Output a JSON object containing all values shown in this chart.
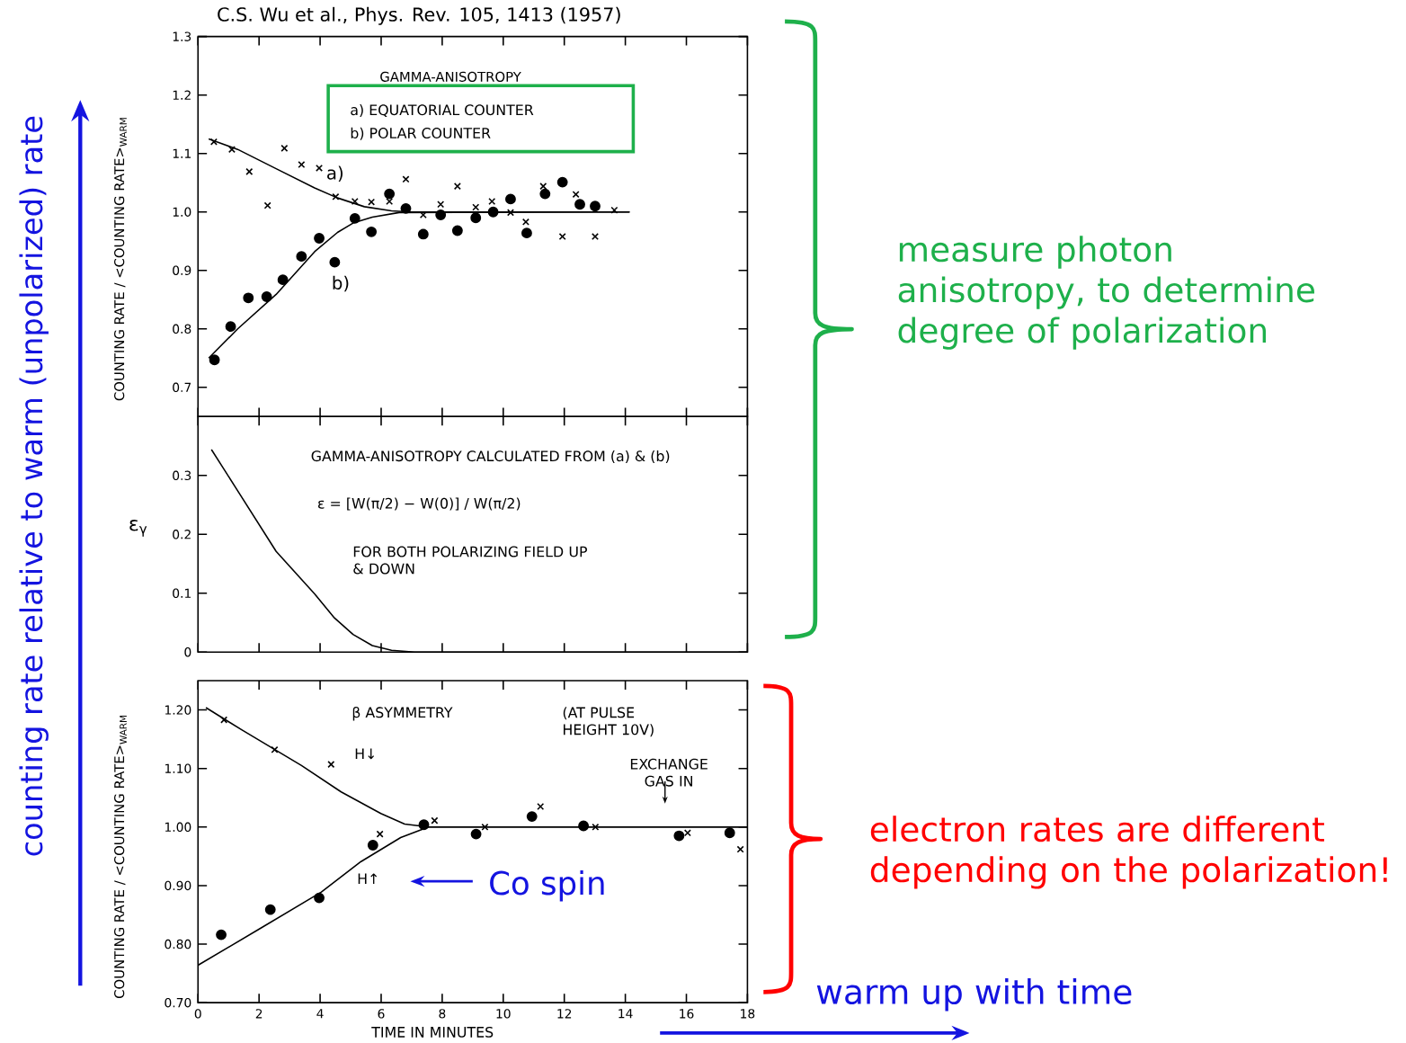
{
  "chart_data": [
    {
      "type": "scatter",
      "title": "C.S. Wu et al., Phys. Rev. 105, 1413 (1957)",
      "ylabel": "COUNTING RATE / <COUNTING RATE>$_{WARM}$",
      "xlim": [
        0,
        18
      ],
      "ylim": [
        0.65,
        1.3
      ],
      "xticks": [
        0,
        2,
        4,
        6,
        8,
        10,
        12,
        14,
        16,
        18
      ],
      "yticks": [
        0.7,
        0.8,
        0.9,
        {
          "value": 1.0,
          "label": "1.0"
        },
        1.1,
        1.2,
        1.3
      ],
      "tick_labels": "y",
      "annotations": [
        "GAMMA-ANISOTROPY",
        "a) EQUATORIAL COUNTER",
        "b) POLAR COUNTER",
        "measure photon anisotropy, to determine degree of polarization",
        "counting rate relative to warm (unpolarized) rate"
      ],
      "series": [
        {
          "marker": "cross",
          "color": "#000000",
          "x": [
            0.52,
            1.11,
            1.68,
            2.28,
            2.83,
            3.39,
            3.97,
            4.51,
            5.14,
            5.68,
            6.27,
            6.81,
            7.38,
            7.95,
            8.5,
            9.1,
            9.63,
            10.24,
            10.74,
            11.31,
            11.94,
            12.38,
            13.01,
            13.64
          ],
          "values": [
            1.12,
            1.107,
            1.069,
            1.011,
            1.109,
            1.081,
            1.075,
            1.026,
            1.018,
            1.017,
            1.018,
            1.056,
            0.995,
            1.013,
            1.044,
            1.008,
            1.018,
            0.999,
            0.983,
            1.044,
            0.958,
            1.03,
            0.958,
            1.003
          ]
        },
        {
          "marker": "circle",
          "color": "#000000",
          "x": [
            0.54,
            1.07,
            1.65,
            2.25,
            2.78,
            3.39,
            3.97,
            4.48,
            5.14,
            5.68,
            6.27,
            6.81,
            7.38,
            7.95,
            8.5,
            9.1,
            9.67,
            10.24,
            10.77,
            11.37,
            11.94,
            12.51,
            13.01
          ],
          "values": [
            0.747,
            0.804,
            0.853,
            0.855,
            0.884,
            0.924,
            0.955,
            0.914,
            0.989,
            0.966,
            1.031,
            1.006,
            0.962,
            0.995,
            0.968,
            0.99,
            1.0,
            1.022,
            0.964,
            1.031,
            1.051,
            1.013,
            1.01
          ]
        },
        {
          "type": "line",
          "name": "a)",
          "color": "#000000",
          "x": [
            0.35,
            1.3,
            2.56,
            3.82,
            4.57,
            5.45,
            6.34,
            6.96,
            14.14
          ],
          "values": [
            1.125,
            1.107,
            1.074,
            1.041,
            1.024,
            1.009,
            1.002,
            1.0,
            1.0
          ]
        },
        {
          "type": "line",
          "name": "b)",
          "color": "#000000",
          "x": [
            0.35,
            1.3,
            2.56,
            3.82,
            4.57,
            5.08,
            5.71,
            6.59,
            14.14
          ],
          "values": [
            0.75,
            0.8,
            0.859,
            0.932,
            0.965,
            0.981,
            0.991,
            0.999,
            1.0
          ]
        }
      ]
    },
    {
      "type": "line",
      "ylabel": "ε$_{γ}$",
      "xlim": [
        0,
        18
      ],
      "ylim": [
        0,
        0.4
      ],
      "xticks": [
        0,
        2,
        4,
        6,
        8,
        10,
        12,
        14,
        16,
        18
      ],
      "yticks": [
        0,
        0.1,
        0.2,
        0.3
      ],
      "tick_labels": "y",
      "annotations": [
        "GAMMA-ANISOTROPY CALCULATED FROM (a) & (b)",
        "ε = [W(π/2) − W(0)] / W(π/2)",
        "FOR BOTH POLARIZING FIELD UP & DOWN"
      ],
      "series": [
        {
          "color": "#000000",
          "x": [
            0.44,
            1.3,
            2.56,
            3.82,
            4.45,
            5.08,
            5.71,
            6.34,
            7.09,
            18
          ],
          "values": [
            0.344,
            0.274,
            0.171,
            0.099,
            0.059,
            0.03,
            0.011,
            0.003,
            0,
            0
          ]
        }
      ]
    },
    {
      "type": "scatter",
      "ylabel": "COUNTING RATE / <COUNTING RATE>$_{WARM}$",
      "xlabel": "TIME IN MINUTES",
      "xlim": [
        0,
        18
      ],
      "ylim": [
        0.7,
        1.25
      ],
      "xticks": [
        0,
        2,
        4,
        6,
        8,
        10,
        12,
        14,
        16,
        18
      ],
      "yticks": [
        {
          "value": 0.7,
          "label": "0.70"
        },
        {
          "value": 0.8,
          "label": "0.80"
        },
        {
          "value": 0.9,
          "label": "0.90"
        },
        {
          "value": 1.0,
          "label": "1.00"
        },
        {
          "value": 1.1,
          "label": "1.10"
        },
        {
          "value": 1.2,
          "label": "1.20"
        }
      ],
      "annotations": [
        "β ASYMMETRY",
        "(AT PULSE HEIGHT 10V)",
        "EXCHANGE GAS IN",
        "H↓",
        "H↑",
        "Co spin",
        "electron rates are different depending on the polarization!",
        "warm up with time"
      ],
      "series": [
        {
          "marker": "cross",
          "color": "#000000",
          "x": [
            0.85,
            2.51,
            4.36,
            5.96,
            7.75,
            9.4,
            11.22,
            13.02,
            16.04,
            17.77
          ],
          "values": [
            1.183,
            1.132,
            1.107,
            0.988,
            1.011,
            1.0,
            1.035,
            1.0,
            0.99,
            0.962
          ]
        },
        {
          "marker": "circle",
          "color": "#000000",
          "x": [
            0.76,
            2.37,
            3.97,
            5.73,
            7.4,
            9.11,
            10.94,
            12.63,
            15.76,
            17.42
          ],
          "values": [
            0.816,
            0.859,
            0.879,
            0.969,
            1.004,
            0.988,
            1.018,
            1.002,
            0.985,
            0.99
          ]
        },
        {
          "type": "line",
          "color": "#000000",
          "x": [
            0.26,
            1.43,
            3.39,
            4.69,
            5.99,
            6.77,
            7.55,
            18
          ],
          "values": [
            1.204,
            1.166,
            1.105,
            1.06,
            1.023,
            1.005,
            1.0,
            1.0
          ]
        },
        {
          "type": "line",
          "color": "#000000",
          "x": [
            0,
            2.08,
            4.04,
            5.34,
            6.64,
            7.55,
            18
          ],
          "values": [
            0.764,
            0.828,
            0.889,
            0.941,
            0.982,
            1.0,
            1.0
          ]
        }
      ]
    }
  ]
}
